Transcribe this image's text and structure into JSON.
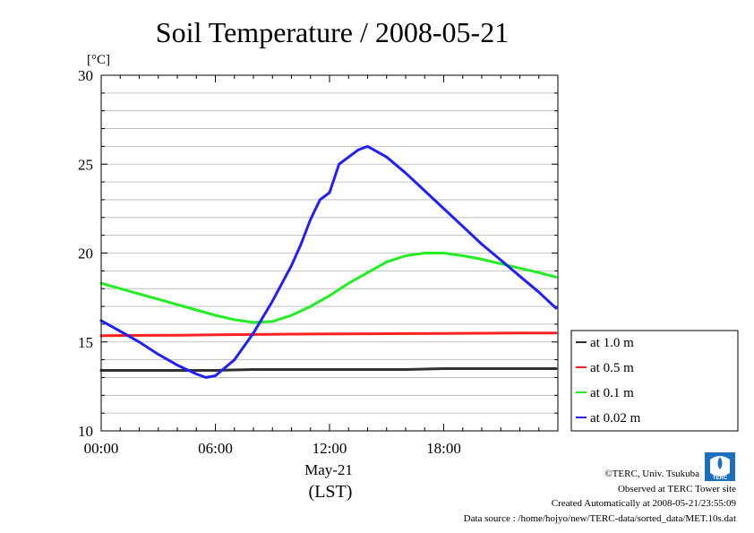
{
  "chart_data": {
    "type": "line",
    "title": "Soil Temperature / 2008-05-21",
    "ylabel": "[°C]",
    "xlabel": "May-21",
    "xlabel2": "(LST)",
    "ylim": [
      10,
      30
    ],
    "xlim": [
      0,
      24
    ],
    "y_ticks": [
      10,
      15,
      20,
      25,
      30
    ],
    "y_tick_labels": [
      "10",
      "15",
      "20",
      "25",
      "30"
    ],
    "x_ticks": [
      0,
      6,
      12,
      18
    ],
    "x_tick_labels": [
      "00:00",
      "06:00",
      "12:00",
      "18:00"
    ],
    "grid": true,
    "legend_position": "right-bottom",
    "series": [
      {
        "name": "at 1.0 m",
        "color": "#303030",
        "x": [
          0,
          2,
          4,
          6,
          8,
          10,
          12,
          14,
          16,
          18,
          20,
          22,
          23.9
        ],
        "values": [
          13.4,
          13.4,
          13.4,
          13.4,
          13.45,
          13.45,
          13.45,
          13.45,
          13.45,
          13.5,
          13.5,
          13.5,
          13.5
        ]
      },
      {
        "name": "at 0.5 m",
        "color": "#ff2020",
        "x": [
          0,
          2,
          4,
          6,
          8,
          10,
          12,
          14,
          16,
          18,
          20,
          22,
          23.9
        ],
        "values": [
          15.35,
          15.37,
          15.38,
          15.4,
          15.42,
          15.44,
          15.45,
          15.46,
          15.47,
          15.48,
          15.49,
          15.5,
          15.5
        ]
      },
      {
        "name": "at 0.1 m",
        "color": "#22ee22",
        "x": [
          0,
          1,
          2,
          3,
          4,
          5,
          6,
          7,
          8,
          9,
          10,
          11,
          12,
          13,
          14,
          15,
          16,
          17,
          18,
          19,
          20,
          21,
          22,
          23,
          23.9
        ],
        "values": [
          18.3,
          18.0,
          17.7,
          17.4,
          17.1,
          16.8,
          16.5,
          16.25,
          16.1,
          16.15,
          16.5,
          17.0,
          17.6,
          18.3,
          18.9,
          19.5,
          19.85,
          20.0,
          20.0,
          19.85,
          19.65,
          19.4,
          19.15,
          18.9,
          18.65
        ]
      },
      {
        "name": "at 0.02 m",
        "color": "#2020ff",
        "x": [
          0,
          1,
          2,
          3,
          4,
          5,
          5.5,
          6,
          7,
          8,
          9,
          10,
          10.5,
          11,
          11.5,
          12,
          12.5,
          13,
          13.5,
          14,
          15,
          16,
          17,
          18,
          19,
          20,
          21,
          22,
          23,
          23.9
        ],
        "values": [
          16.2,
          15.6,
          15.0,
          14.3,
          13.7,
          13.2,
          13.0,
          13.1,
          14.0,
          15.5,
          17.3,
          19.3,
          20.5,
          21.9,
          23.0,
          23.4,
          25.0,
          25.4,
          25.8,
          26.0,
          25.4,
          24.5,
          23.5,
          22.5,
          21.5,
          20.5,
          19.6,
          18.7,
          17.8,
          16.9
        ]
      }
    ]
  },
  "footer": {
    "copyright": "©TERC, Univ. Tsukuba",
    "observed": "Observed at TERC Tower site",
    "created": "Created Automatically at 2008-05-21/23:55:09",
    "source": "Data source : /home/hojyo/new/TERC-data/sorted_data/MET.10s.dat",
    "logo_text": "TERC"
  }
}
